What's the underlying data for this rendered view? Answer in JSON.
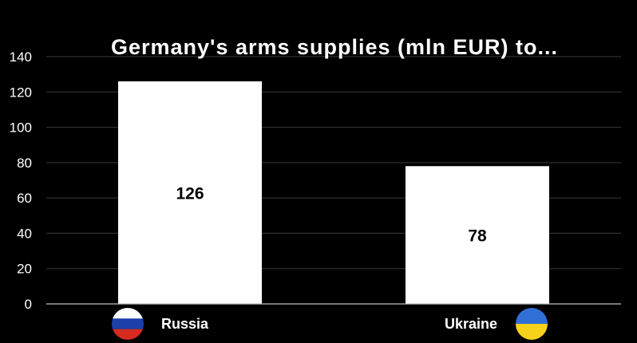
{
  "chart_data": {
    "type": "bar",
    "title": "Germany's arms supplies (mln EUR) to...",
    "categories": [
      "Russia",
      "Ukraine"
    ],
    "values": [
      126,
      78
    ],
    "data_labels": [
      "126",
      "78"
    ],
    "ylim": [
      0,
      140
    ],
    "yticks": [
      0,
      20,
      40,
      60,
      80,
      100,
      120,
      140
    ],
    "ytick_labels": [
      "0",
      "20",
      "40",
      "60",
      "80",
      "100",
      "120",
      "140"
    ],
    "grid": true,
    "legend": "none",
    "colors": {
      "background": "#000000",
      "bar": "#ffffff",
      "grid": "#3a3a3a",
      "text": "#ffffff",
      "label": "#000000"
    }
  },
  "flags": [
    {
      "icon": "russia-flag-icon",
      "colors": [
        "#ffffff",
        "#1c3fa8",
        "#d52b1e"
      ]
    },
    {
      "icon": "ukraine-flag-icon",
      "colors": [
        "#2f6fd6",
        "#f7d21b"
      ]
    }
  ]
}
